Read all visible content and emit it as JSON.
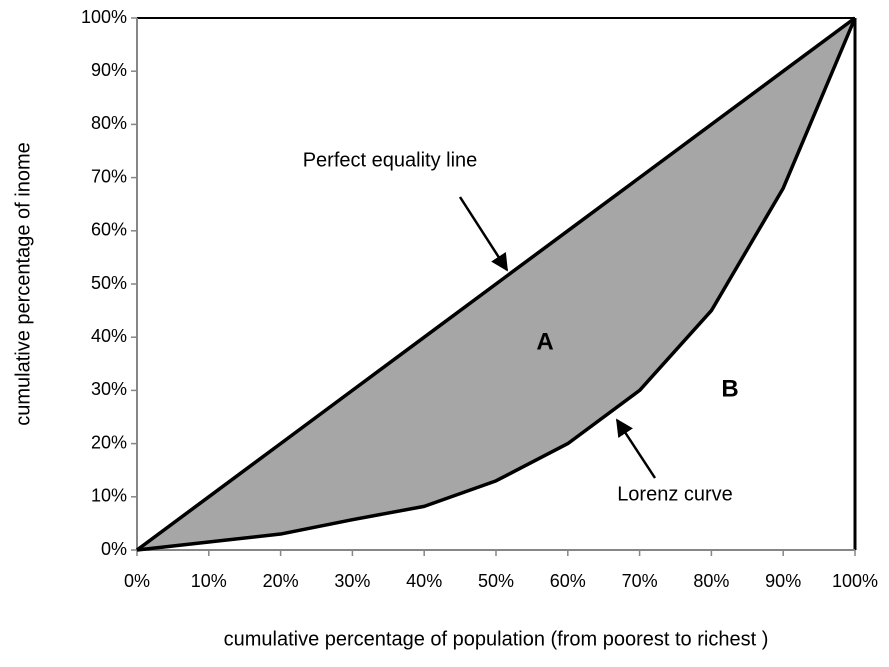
{
  "chart_data": {
    "type": "line",
    "x_label": "cumulative percentage of population (from poorest to richest )",
    "y_label": "cumulative percentage of inome",
    "x": [
      0,
      10,
      20,
      30,
      40,
      50,
      60,
      70,
      80,
      90,
      100
    ],
    "series": [
      {
        "name": "Perfect equality line",
        "color": "#000000",
        "values": [
          0,
          10,
          20,
          30,
          40,
          50,
          60,
          70,
          80,
          90,
          100
        ]
      },
      {
        "name": "Lorenz curve",
        "color": "#000000",
        "values": [
          0,
          1.5,
          3,
          5.7,
          8.2,
          13,
          20,
          30,
          45,
          68,
          100
        ]
      }
    ],
    "fill_between_color": "#a6a6a6",
    "annotations": [
      "A",
      "B"
    ],
    "xlim": [
      0,
      100
    ],
    "ylim": [
      0,
      100
    ],
    "xticks": [
      {
        "value": 0,
        "label": "0%"
      },
      {
        "value": 10,
        "label": "10%"
      },
      {
        "value": 20,
        "label": "20%"
      },
      {
        "value": 30,
        "label": "30%"
      },
      {
        "value": 40,
        "label": "40%"
      },
      {
        "value": 50,
        "label": "50%"
      },
      {
        "value": 60,
        "label": "60%"
      },
      {
        "value": 70,
        "label": "70%"
      },
      {
        "value": 80,
        "label": "80%"
      },
      {
        "value": 90,
        "label": "90%"
      },
      {
        "value": 100,
        "label": "100%"
      }
    ],
    "yticks": [
      {
        "value": 0,
        "label": "0%"
      },
      {
        "value": 10,
        "label": "10%"
      },
      {
        "value": 20,
        "label": "20%"
      },
      {
        "value": 30,
        "label": "30%"
      },
      {
        "value": 40,
        "label": "40%"
      },
      {
        "value": 50,
        "label": "50%"
      },
      {
        "value": 60,
        "label": "60%"
      },
      {
        "value": 70,
        "label": "70%"
      },
      {
        "value": 80,
        "label": "80%"
      },
      {
        "value": 90,
        "label": "90%"
      },
      {
        "value": 100,
        "label": "100%"
      }
    ]
  }
}
